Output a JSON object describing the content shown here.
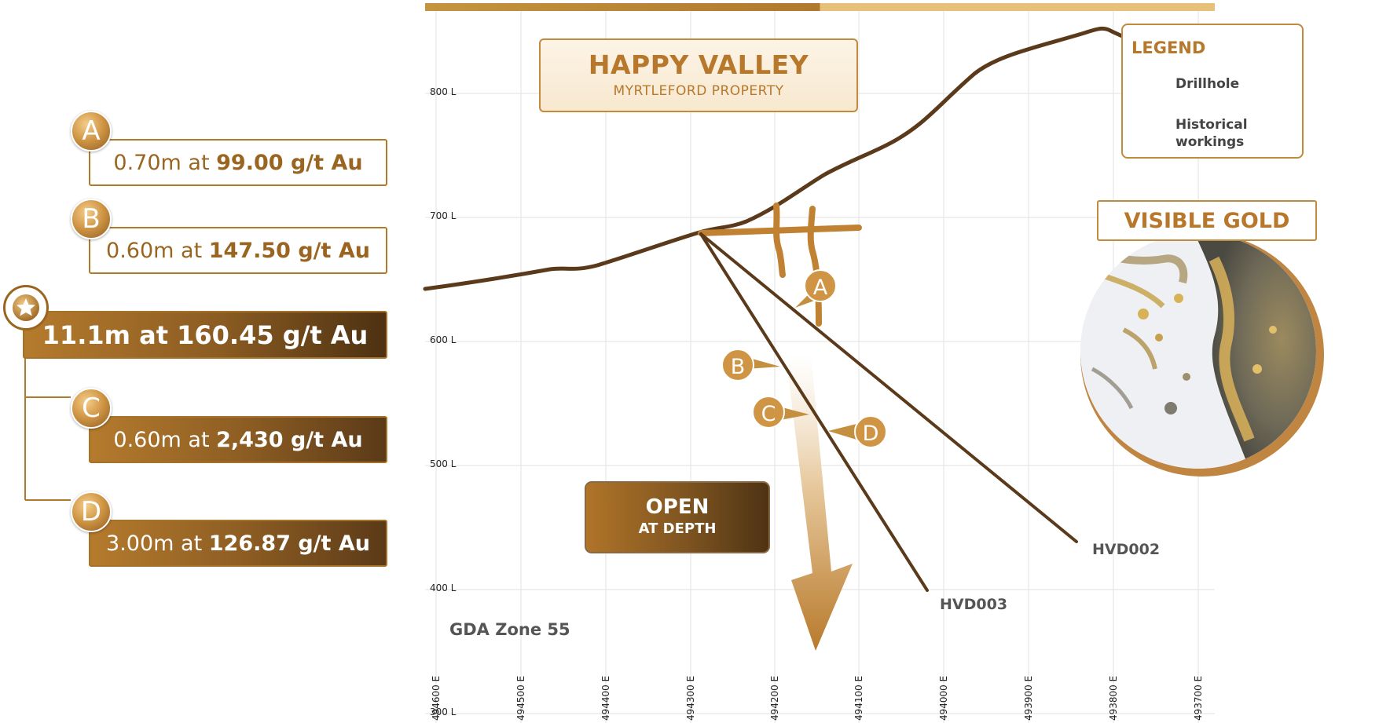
{
  "title": {
    "main": "HAPPY VALLEY",
    "sub": "MYRTLEFORD PROPERTY"
  },
  "legend": {
    "title": "LEGEND",
    "items": [
      {
        "label": "Drillhole",
        "color": "#5a3a1a"
      },
      {
        "label": "Historical workings",
        "color": "#c08232"
      }
    ]
  },
  "visible_gold": "VISIBLE GOLD",
  "open_box": {
    "line1": "OPEN",
    "line2": "AT DEPTH"
  },
  "intercepts": [
    {
      "marker": "A",
      "prefix": "0.70m at ",
      "grade": "99.00 g/t Au"
    },
    {
      "marker": "B",
      "prefix": "0.60m at ",
      "grade": "147.50 g/t Au"
    },
    {
      "marker": "star",
      "text": "11.1m at 160.45 g/t Au"
    },
    {
      "marker": "C",
      "prefix": "0.60m at ",
      "grade": "2,430 g/t Au"
    },
    {
      "marker": "D",
      "prefix": "3.00m at ",
      "grade": "126.87 g/t Au"
    }
  ],
  "section_markers": [
    "A",
    "B",
    "C",
    "D"
  ],
  "drillholes": [
    "HVD002",
    "HVD003"
  ],
  "elevation_labels": [
    "800 L",
    "700 L",
    "600 L",
    "500 L",
    "400 L",
    "300 L"
  ],
  "easting_labels": [
    "494600 E",
    "494500 E",
    "494400 E",
    "494300 E",
    "494200 E",
    "494100 E",
    "494000 E",
    "493900 E",
    "493800 E",
    "493700 E"
  ],
  "projection": "GDA Zone 55",
  "colors": {
    "accent": "#b8782c",
    "drillhole": "#5a3a1a",
    "workings": "#c08232",
    "dark_gradient_end": "#4d3112"
  }
}
